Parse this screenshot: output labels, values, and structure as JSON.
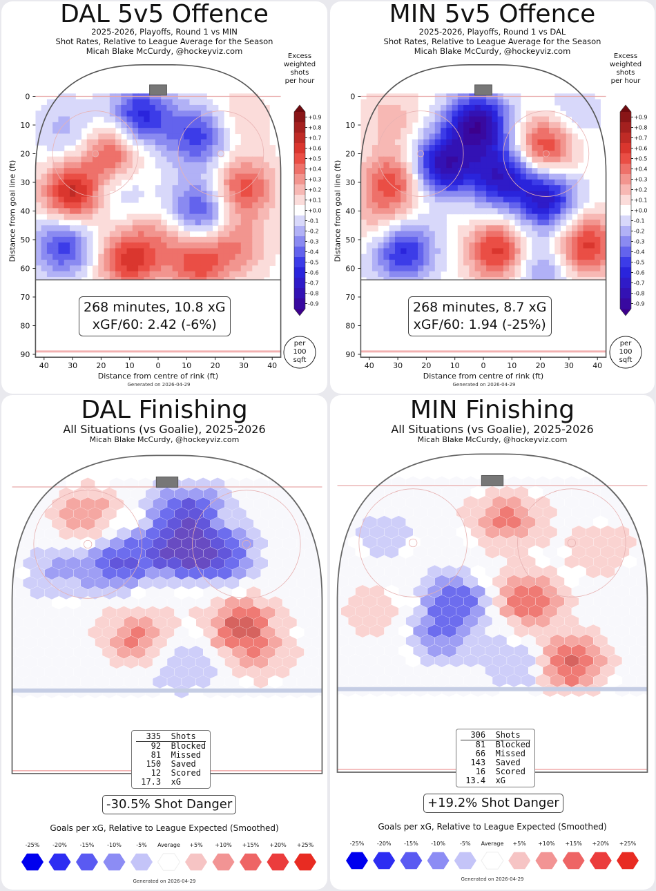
{
  "chart_data": [
    {
      "type": "heatmap",
      "title": "DAL 5v5 Offence",
      "subtitle": [
        "2025-2026, Playoffs, Round 1 vs MIN",
        "Shot Rates, Relative to League Average for the Season",
        "Micah Blake McCurdy, @hockeyviz.com"
      ],
      "xlabel": "Distance from centre of rink (ft)",
      "ylabel": "Distance from goal line (ft)",
      "x_ticks": [
        "40",
        "30",
        "20",
        "10",
        "0",
        "10",
        "20",
        "30",
        "40"
      ],
      "y_ticks": [
        "0",
        "10",
        "20",
        "30",
        "40",
        "50",
        "60",
        "70",
        "80",
        "90"
      ],
      "colorbar_title": [
        "Excess",
        "weighted",
        "shots",
        "per hour"
      ],
      "colorbar_ticks": [
        "+0.9",
        "+0.8",
        "+0.7",
        "+0.6",
        "+0.5",
        "+0.4",
        "+0.3",
        "+0.2",
        "+0.1",
        "+0.0",
        "-0.1",
        "-0.2",
        "-0.3",
        "-0.4",
        "-0.5",
        "-0.6",
        "-0.7",
        "-0.8",
        "-0.9"
      ],
      "unit_badge": [
        "per",
        "100",
        "sqft"
      ],
      "summary": [
        "268 minutes, 10.8 xG",
        "xGF/60: 2.42 (-6%)"
      ],
      "footer": "Generated on 2026-04-29",
      "regions": [
        {
          "x": -30,
          "y": 34,
          "v": 0.7
        },
        {
          "x": -16,
          "y": 20,
          "v": 0.5
        },
        {
          "x": -6,
          "y": 7,
          "v": -0.6
        },
        {
          "x": 14,
          "y": 14,
          "v": -0.5
        },
        {
          "x": 30,
          "y": 32,
          "v": 0.5
        },
        {
          "x": 14,
          "y": 40,
          "v": -0.5
        },
        {
          "x": -33,
          "y": 52,
          "v": -0.5
        },
        {
          "x": -10,
          "y": 57,
          "v": 0.6
        },
        {
          "x": 14,
          "y": 58,
          "v": 0.5
        },
        {
          "x": 28,
          "y": 52,
          "v": 0.3
        },
        {
          "x": -14,
          "y": 32,
          "v": -0.2
        },
        {
          "x": -32,
          "y": 12,
          "v": -0.2
        },
        {
          "x": 28,
          "y": 8,
          "v": 0.15
        },
        {
          "x": 2,
          "y": 48,
          "v": 0.2
        }
      ]
    },
    {
      "type": "heatmap",
      "title": "MIN 5v5 Offence",
      "subtitle": [
        "2025-2026, Playoffs, Round 1 vs DAL",
        "Shot Rates, Relative to League Average for the Season",
        "Micah Blake McCurdy, @hockeyviz.com"
      ],
      "xlabel": "Distance from centre of rink (ft)",
      "ylabel": "Distance from goal line (ft)",
      "x_ticks": [
        "40",
        "30",
        "20",
        "10",
        "0",
        "10",
        "20",
        "30",
        "40"
      ],
      "y_ticks": [
        "0",
        "10",
        "20",
        "30",
        "40",
        "50",
        "60",
        "70",
        "80",
        "90"
      ],
      "colorbar_title": [
        "Excess",
        "weighted",
        "shots",
        "per hour"
      ],
      "colorbar_ticks": [
        "+0.9",
        "+0.8",
        "+0.7",
        "+0.6",
        "+0.5",
        "+0.4",
        "+0.3",
        "+0.2",
        "+0.1",
        "+0.0",
        "-0.1",
        "-0.2",
        "-0.3",
        "-0.4",
        "-0.5",
        "-0.6",
        "-0.7",
        "-0.8",
        "-0.9"
      ],
      "unit_badge": [
        "per",
        "100",
        "sqft"
      ],
      "summary": [
        "268 minutes, 8.7 xG",
        "xGF/60: 1.94 (-25%)"
      ],
      "footer": "Generated on 2026-04-29",
      "regions": [
        {
          "x": -2,
          "y": 10,
          "v": -0.9
        },
        {
          "x": -14,
          "y": 24,
          "v": -0.8
        },
        {
          "x": 6,
          "y": 28,
          "v": -0.7
        },
        {
          "x": 22,
          "y": 36,
          "v": -0.7
        },
        {
          "x": 22,
          "y": 17,
          "v": 0.6
        },
        {
          "x": -32,
          "y": 30,
          "v": 0.5
        },
        {
          "x": 36,
          "y": 52,
          "v": 0.6
        },
        {
          "x": 5,
          "y": 54,
          "v": 0.6
        },
        {
          "x": -28,
          "y": 54,
          "v": -0.6
        },
        {
          "x": -32,
          "y": 8,
          "v": 0.2
        },
        {
          "x": 30,
          "y": 8,
          "v": -0.2
        },
        {
          "x": 20,
          "y": 60,
          "v": -0.3
        },
        {
          "x": -36,
          "y": 44,
          "v": 0.2
        }
      ]
    },
    {
      "type": "heatmap",
      "title": "DAL Finishing",
      "subtitle": "All Situations (vs Goalie), 2025-2026",
      "credit": "Micah Blake McCurdy, @hockeyviz.com",
      "stats": [
        [
          "335",
          "Shots"
        ],
        [
          "92",
          "Blocked"
        ],
        [
          "81",
          "Missed"
        ],
        [
          "150",
          "Saved"
        ],
        [
          "12",
          "Scored"
        ],
        [
          "17.3",
          "xG"
        ]
      ],
      "shot_danger": "-30.5% Shot Danger",
      "legend_title": "Goals per xG, Relative to League Expected (Smoothed)",
      "legend_labels": [
        "-25%",
        "-20%",
        "-15%",
        "-10%",
        "-5%",
        "Average",
        "+5%",
        "+10%",
        "+15%",
        "+20%",
        "+25%"
      ],
      "legend_colors": [
        "#0000ee",
        "#2d2df2",
        "#5a5af2",
        "#8c8cf4",
        "#c4c4f8",
        "#ffffff",
        "#f6c4c4",
        "#f29494",
        "#ee6565",
        "#eb3c3c",
        "#e82b22"
      ],
      "footer": "Generated on 2026-04-29",
      "regions": [
        {
          "x": 2,
          "y": 22,
          "v": -0.22
        },
        {
          "x": -14,
          "y": 26,
          "v": -0.18
        },
        {
          "x": 14,
          "y": 24,
          "v": -0.2
        },
        {
          "x": 6,
          "y": 8,
          "v": -0.18
        },
        {
          "x": -22,
          "y": 10,
          "v": 0.12
        },
        {
          "x": 20,
          "y": 48,
          "v": 0.18
        },
        {
          "x": -8,
          "y": 52,
          "v": 0.15
        },
        {
          "x": -30,
          "y": 30,
          "v": -0.08
        },
        {
          "x": 26,
          "y": 58,
          "v": 0.08
        },
        {
          "x": 4,
          "y": 62,
          "v": -0.08
        }
      ]
    },
    {
      "type": "heatmap",
      "title": "MIN Finishing",
      "subtitle": "All Situations (vs Goalie), 2025-2026",
      "credit": "Micah Blake McCurdy, @hockeyviz.com",
      "stats": [
        [
          "306",
          "Shots"
        ],
        [
          "81",
          "Blocked"
        ],
        [
          "66",
          "Missed"
        ],
        [
          "143",
          "Saved"
        ],
        [
          "16",
          "Scored"
        ],
        [
          "13.4",
          "xG"
        ]
      ],
      "shot_danger": "+19.2% Shot Danger",
      "legend_title": "Goals per xG, Relative to League Expected (Smoothed)",
      "legend_labels": [
        "-25%",
        "-20%",
        "-15%",
        "-10%",
        "-5%",
        "Average",
        "+5%",
        "+10%",
        "+15%",
        "+20%",
        "+25%"
      ],
      "legend_colors": [
        "#0000ee",
        "#2d2df2",
        "#5a5af2",
        "#8c8cf4",
        "#c4c4f8",
        "#ffffff",
        "#f6c4c4",
        "#f29494",
        "#ee6565",
        "#eb3c3c",
        "#e82b22"
      ],
      "footer": "Generated on 2026-04-29",
      "regions": [
        {
          "x": 4,
          "y": 12,
          "v": 0.15
        },
        {
          "x": 10,
          "y": 40,
          "v": 0.17
        },
        {
          "x": 22,
          "y": 62,
          "v": 0.2
        },
        {
          "x": -10,
          "y": 40,
          "v": -0.15
        },
        {
          "x": -14,
          "y": 52,
          "v": -0.12
        },
        {
          "x": 30,
          "y": 22,
          "v": 0.06
        },
        {
          "x": -30,
          "y": 18,
          "v": -0.05
        },
        {
          "x": 8,
          "y": 62,
          "v": -0.08
        },
        {
          "x": -32,
          "y": 44,
          "v": 0.06
        }
      ]
    }
  ]
}
